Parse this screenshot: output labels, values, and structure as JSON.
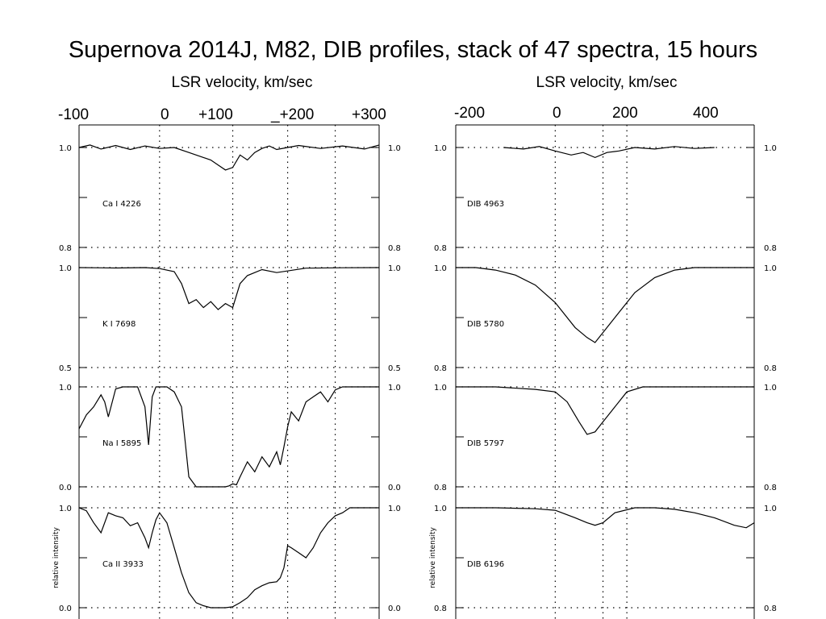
{
  "title": "Supernova 2014J, M82, DIB profiles, stack of 47 spectra, 15 hours",
  "chart_data": [
    {
      "type": "line",
      "name": "left-column",
      "xlabel": "LSR velocity, km/sec",
      "top_tick_labels": [
        "-100",
        "0",
        "+100",
        "_+200",
        "+300"
      ],
      "xlim": [
        -110,
        300
      ],
      "ylabel": "relative intensity",
      "ylabel_panel": 3,
      "reference_lines_x": [
        0,
        100,
        175,
        240
      ],
      "panels": [
        {
          "label": "Ca I 4226",
          "ymin": 0.8,
          "ymax": 1.0,
          "tick_top": "1.0",
          "tick_bottom": "0.8",
          "x": [
            -110,
            -95,
            -80,
            -60,
            -40,
            -20,
            0,
            20,
            40,
            60,
            70,
            80,
            90,
            100,
            110,
            120,
            130,
            140,
            150,
            160,
            175,
            190,
            220,
            250,
            280,
            300
          ],
          "y": [
            1.0,
            1.005,
            0.997,
            1.004,
            0.996,
            1.003,
            0.998,
            1.0,
            0.99,
            0.98,
            0.975,
            0.965,
            0.955,
            0.96,
            0.985,
            0.975,
            0.99,
            0.998,
            1.003,
            0.996,
            1.0,
            1.004,
            0.998,
            1.003,
            0.997,
            1.005
          ]
        },
        {
          "label": "K I 7698",
          "ymin": 0.5,
          "ymax": 1.0,
          "tick_top": "1.0",
          "tick_bottom": "0.5",
          "x": [
            -110,
            -60,
            -20,
            0,
            20,
            30,
            40,
            50,
            60,
            70,
            80,
            90,
            100,
            110,
            120,
            140,
            160,
            200,
            250,
            300
          ],
          "y": [
            1.0,
            0.998,
            1.0,
            0.995,
            0.98,
            0.92,
            0.82,
            0.84,
            0.8,
            0.83,
            0.79,
            0.82,
            0.8,
            0.92,
            0.96,
            0.99,
            0.975,
            0.997,
            0.999,
            1.0
          ]
        },
        {
          "label": "Na I 5895",
          "ymin": 0.0,
          "ymax": 1.0,
          "tick_top": "1.0",
          "tick_bottom": "0.0",
          "x": [
            -110,
            -100,
            -90,
            -80,
            -75,
            -70,
            -60,
            -50,
            -40,
            -30,
            -20,
            -15,
            -10,
            -5,
            0,
            10,
            20,
            30,
            35,
            40,
            50,
            60,
            70,
            80,
            90,
            95,
            100,
            105,
            110,
            120,
            130,
            140,
            150,
            160,
            165,
            170,
            175,
            180,
            190,
            200,
            210,
            220,
            230,
            240,
            250,
            260,
            280,
            300
          ],
          "y": [
            0.58,
            0.72,
            0.8,
            0.92,
            0.85,
            0.7,
            0.98,
            1.0,
            1.0,
            1.0,
            0.8,
            0.42,
            0.9,
            1.0,
            1.0,
            1.0,
            0.95,
            0.8,
            0.45,
            0.1,
            0.0,
            0.0,
            0.0,
            0.0,
            0.0,
            0.01,
            0.03,
            0.02,
            0.1,
            0.25,
            0.15,
            0.3,
            0.2,
            0.35,
            0.22,
            0.4,
            0.6,
            0.75,
            0.66,
            0.85,
            0.9,
            0.95,
            0.85,
            0.97,
            1.0,
            1.0,
            1.0,
            1.0
          ]
        },
        {
          "label": "Ca II 3933",
          "ymin": 0.0,
          "ymax": 1.0,
          "tick_top": "1.0",
          "tick_bottom": "0.0",
          "x": [
            -110,
            -100,
            -90,
            -80,
            -70,
            -60,
            -50,
            -40,
            -30,
            -20,
            -15,
            -10,
            -5,
            0,
            10,
            20,
            30,
            40,
            50,
            60,
            70,
            80,
            90,
            100,
            110,
            120,
            130,
            140,
            150,
            160,
            165,
            170,
            175,
            180,
            190,
            200,
            210,
            220,
            230,
            240,
            250,
            260,
            280,
            300
          ],
          "y": [
            1.0,
            0.97,
            0.85,
            0.75,
            0.95,
            0.92,
            0.9,
            0.82,
            0.85,
            0.7,
            0.6,
            0.75,
            0.88,
            0.95,
            0.85,
            0.6,
            0.35,
            0.15,
            0.05,
            0.02,
            0.0,
            0.0,
            0.0,
            0.01,
            0.05,
            0.1,
            0.18,
            0.22,
            0.25,
            0.26,
            0.3,
            0.4,
            0.62,
            0.6,
            0.55,
            0.5,
            0.6,
            0.75,
            0.85,
            0.92,
            0.95,
            1.0,
            1.0,
            1.0
          ]
        }
      ]
    },
    {
      "type": "line",
      "name": "right-column",
      "xlabel": "LSR velocity, km/sec",
      "top_tick_labels": [
        "-200",
        "0",
        "200",
        "400"
      ],
      "xlim": [
        -250,
        500
      ],
      "ylabel": "relative intensity",
      "ylabel_panel": 3,
      "reference_lines_x": [
        0,
        120,
        180
      ],
      "panels": [
        {
          "label": "DIB 4963",
          "ymin": 0.8,
          "ymax": 1.0,
          "tick_top": "1.0",
          "tick_bottom": "0.8",
          "x": [
            -130,
            -80,
            -40,
            0,
            40,
            70,
            100,
            130,
            160,
            200,
            250,
            300,
            350,
            400
          ],
          "y": [
            1.0,
            0.997,
            1.002,
            0.993,
            0.985,
            0.99,
            0.98,
            0.99,
            0.993,
            1.0,
            0.997,
            1.002,
            0.998,
            1.0
          ]
        },
        {
          "label": "DIB 5780",
          "ymin": 0.8,
          "ymax": 1.0,
          "tick_top": "1.0",
          "tick_bottom": "0.8",
          "x": [
            -250,
            -200,
            -150,
            -100,
            -50,
            0,
            50,
            80,
            100,
            120,
            150,
            200,
            250,
            300,
            350,
            400,
            450,
            500
          ],
          "y": [
            1.0,
            1.0,
            0.995,
            0.985,
            0.965,
            0.93,
            0.88,
            0.86,
            0.85,
            0.87,
            0.9,
            0.95,
            0.98,
            0.995,
            1.0,
            1.0,
            1.0,
            1.0
          ]
        },
        {
          "label": "DIB 5797",
          "ymin": 0.8,
          "ymax": 1.0,
          "tick_top": "1.0",
          "tick_bottom": "0.8",
          "x": [
            -250,
            -150,
            -50,
            0,
            30,
            60,
            80,
            100,
            120,
            150,
            180,
            220,
            300,
            400,
            500
          ],
          "y": [
            1.0,
            1.0,
            0.995,
            0.99,
            0.97,
            0.93,
            0.905,
            0.91,
            0.93,
            0.96,
            0.99,
            1.0,
            1.0,
            1.0,
            1.0
          ]
        },
        {
          "label": "DIB 6196",
          "ymin": 0.8,
          "ymax": 1.0,
          "tick_top": "1.0",
          "tick_bottom": "0.8",
          "x": [
            -250,
            -150,
            -50,
            0,
            50,
            80,
            100,
            120,
            150,
            200,
            250,
            300,
            350,
            400,
            450,
            480,
            500
          ],
          "y": [
            1.0,
            1.0,
            0.998,
            0.995,
            0.98,
            0.97,
            0.965,
            0.97,
            0.99,
            1.0,
            1.0,
            0.997,
            0.99,
            0.98,
            0.965,
            0.96,
            0.97
          ]
        }
      ]
    }
  ]
}
